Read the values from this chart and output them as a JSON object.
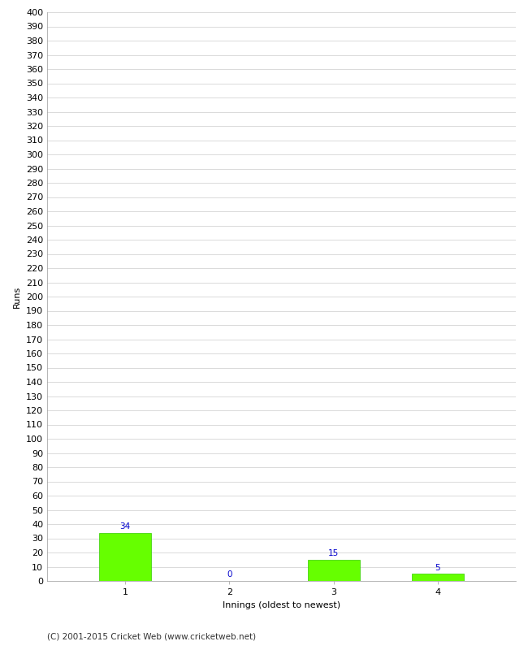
{
  "categories": [
    "1",
    "2",
    "3",
    "4"
  ],
  "values": [
    34,
    0,
    15,
    5
  ],
  "bar_color": "#66ff00",
  "bar_edge_color": "#33cc00",
  "value_label_color": "#0000cc",
  "xlabel": "Innings (oldest to newest)",
  "ylabel": "Runs",
  "ylim": [
    0,
    400
  ],
  "ytick_step": 10,
  "background_color": "#ffffff",
  "grid_color": "#cccccc",
  "footer_text": "(C) 2001-2015 Cricket Web (www.cricketweb.net)",
  "value_fontsize": 7.5,
  "axis_fontsize": 8,
  "ylabel_fontsize": 8,
  "xlabel_fontsize": 8,
  "footer_fontsize": 7.5
}
